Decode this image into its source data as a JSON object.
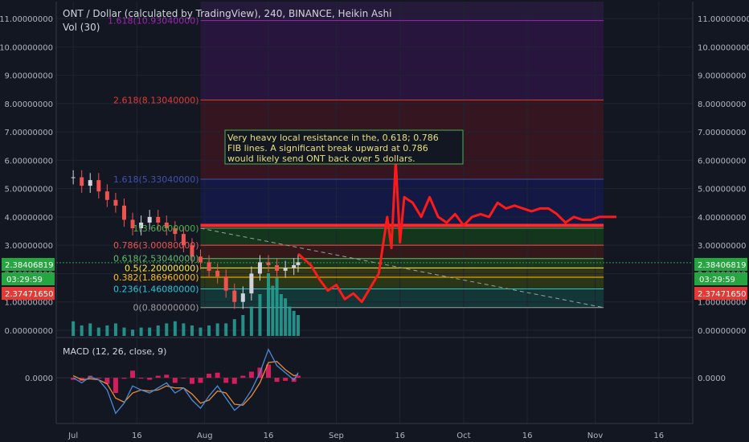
{
  "header": {
    "title": "ONT / Dollar (calculated by TradingView), 240, BINANCE, Heikin Ashi",
    "vol_label": "Vol (30)"
  },
  "macd_label": "MACD (12, 26, close, 9)",
  "colors": {
    "background": "#131722",
    "price_line": "#ff1a1a",
    "resistance": "#ff2a2a",
    "candle_up": "#d1d4dc",
    "candle_down": "#ef5350",
    "volume": "#26a69a",
    "macd_line": "#4a8ad6",
    "signal_line": "#e88a3a",
    "histogram_pos": "#e91e63",
    "price_badge": "#26a641",
    "timer_badge": "#26a641",
    "low_badge": "#e53935"
  },
  "badges": {
    "current_price": "2.38406819",
    "timer": "03:29:59",
    "price2": "2.37471650"
  },
  "annotation": {
    "lines": [
      "Very heavy local resistance in the, 0.618; 0.786",
      "FIB lines. A significant break upward at 0.786",
      "would likely send ONT back over 5 dollars."
    ]
  },
  "chart_data": [
    {
      "type": "line",
      "title": "ONT / Dollar (calculated by TradingView), 240, BINANCE, Heikin Ashi",
      "ylim": [
        -0.2,
        11.6
      ],
      "y_ticks": [
        "11.00000000",
        "10.00000000",
        "9.00000000",
        "8.00000000",
        "7.00000000",
        "6.00000000",
        "5.00000000",
        "4.00000000",
        "3.00000000",
        "2.00000000",
        "1.00000000",
        "0.00000000"
      ],
      "y_tick_values": [
        11,
        10,
        9,
        8,
        7,
        6,
        5,
        4,
        3,
        2,
        1,
        0
      ],
      "x_ticks": [
        {
          "label": "Jul",
          "day": 0
        },
        {
          "label": "16",
          "day": 15
        },
        {
          "label": "Aug",
          "day": 31
        },
        {
          "label": "16",
          "day": 46
        },
        {
          "label": "Sep",
          "day": 62
        },
        {
          "label": "16",
          "day": 77
        },
        {
          "label": "Oct",
          "day": 92
        },
        {
          "label": "16",
          "day": 107
        },
        {
          "label": "Nov",
          "day": 123
        },
        {
          "label": "16",
          "day": 138
        }
      ],
      "x_range_days": [
        -4,
        146
      ],
      "candles": {
        "x_days": [
          0,
          2,
          4,
          6,
          8,
          10,
          12,
          14,
          16,
          18,
          20,
          22,
          24,
          26,
          28,
          30,
          32,
          34,
          36,
          38,
          40,
          42,
          44,
          46,
          48,
          50,
          52,
          53
        ],
        "values": [
          5.4,
          5.1,
          5.3,
          4.9,
          4.6,
          4.4,
          3.9,
          3.6,
          3.8,
          4.0,
          3.8,
          3.6,
          3.4,
          3.0,
          2.6,
          2.4,
          2.1,
          1.9,
          1.4,
          1.0,
          1.3,
          2.0,
          2.4,
          2.3,
          2.1,
          2.2,
          2.3,
          2.4
        ]
      },
      "projection_line": {
        "x_days": [
          53,
          56,
          58,
          60,
          62,
          64,
          66,
          68,
          70,
          72,
          74,
          75,
          76,
          77,
          78,
          80,
          82,
          84,
          86,
          88,
          90,
          92,
          94,
          96,
          98,
          100,
          102,
          104,
          106,
          108,
          110,
          112,
          114,
          116,
          118,
          120,
          122,
          124,
          126,
          128
        ],
        "values": [
          2.7,
          2.3,
          1.8,
          1.4,
          1.6,
          1.1,
          1.3,
          1.0,
          1.5,
          2.0,
          4.0,
          2.9,
          6.0,
          3.1,
          4.7,
          4.5,
          4.0,
          4.7,
          4.0,
          3.8,
          4.1,
          3.7,
          4.0,
          4.1,
          4.0,
          4.5,
          4.3,
          4.4,
          4.3,
          4.2,
          4.3,
          4.3,
          4.1,
          3.8,
          4.0,
          3.9,
          3.9,
          4.0,
          4.0,
          4.0
        ]
      },
      "resistance_level": 3.7,
      "fib_region_x_days": [
        30,
        125
      ],
      "fib_levels": [
        {
          "label": "1.618(10.93040000)",
          "ratio": 1.618,
          "value": 10.9304,
          "color": "#9c27b0",
          "fill": "#2a1540"
        },
        {
          "label": "2.618(8.13040000)",
          "ratio": 2.618,
          "value": 8.1304,
          "color": "#e53935",
          "fill": "#3a1520"
        },
        {
          "label": "1.618(5.33040000)",
          "ratio": 1.618,
          "value": 5.3304,
          "color": "#3f51b5",
          "fill": "#141a48"
        },
        {
          "label": "1(3.60000000)",
          "ratio": 1,
          "value": 3.6,
          "color": "#4caf50",
          "fill": "#143a1c"
        },
        {
          "label": "0.786(3.00080000)",
          "ratio": 0.786,
          "value": 3.0008,
          "color": "#ef5350",
          "fill": "#3a1a1a"
        },
        {
          "label": "0.618(2.53040000)",
          "ratio": 0.618,
          "value": 2.5304,
          "color": "#66bb6a",
          "fill": "#1c3a1c"
        },
        {
          "label": "0.5(2.20000000)",
          "ratio": 0.5,
          "value": 2.2,
          "color": "#ffeb3b",
          "fill": "#3a3a14"
        },
        {
          "label": "0.382(1.86960000)",
          "ratio": 0.382,
          "value": 1.8696,
          "color": "#ffc107",
          "fill": "#2e3a14"
        },
        {
          "label": "0.236(1.46080000)",
          "ratio": 0.236,
          "value": 1.4608,
          "color": "#26c6da",
          "fill": "#143a3a"
        },
        {
          "label": "0(0.80000000)",
          "ratio": 0,
          "value": 0.8,
          "color": "#9e9e9e",
          "fill": "#131722"
        }
      ],
      "trendline": {
        "start": [
          30,
          3.6
        ],
        "end": [
          125,
          0.8
        ]
      },
      "volume": {
        "x_days": [
          0,
          2,
          4,
          6,
          8,
          10,
          12,
          14,
          16,
          18,
          20,
          22,
          24,
          26,
          28,
          30,
          32,
          34,
          36,
          38,
          40,
          42,
          44,
          46,
          47,
          48,
          49,
          50,
          51,
          52,
          53
        ],
        "values": [
          0.35,
          0.25,
          0.3,
          0.2,
          0.25,
          0.3,
          0.2,
          0.15,
          0.2,
          0.2,
          0.25,
          0.3,
          0.35,
          0.3,
          0.25,
          0.2,
          0.25,
          0.3,
          0.3,
          0.4,
          0.5,
          0.7,
          1.0,
          1.5,
          1.2,
          1.4,
          1.0,
          0.9,
          0.7,
          0.6,
          0.5
        ]
      }
    },
    {
      "type": "line",
      "title": "MACD (12, 26, close, 9)",
      "y_ticks": [
        "0.0000"
      ],
      "y_tick_values": [
        0
      ],
      "ylim": [
        -0.45,
        0.38
      ],
      "macd": {
        "x_days": [
          0,
          2,
          4,
          6,
          8,
          10,
          12,
          14,
          16,
          18,
          20,
          22,
          24,
          26,
          28,
          30,
          32,
          34,
          36,
          38,
          40,
          42,
          44,
          46,
          48,
          50,
          52,
          53
        ],
        "values": [
          0.0,
          -0.05,
          0.01,
          -0.02,
          -0.12,
          -0.35,
          -0.25,
          -0.08,
          -0.12,
          -0.15,
          -0.1,
          -0.05,
          -0.15,
          -0.1,
          -0.22,
          -0.3,
          -0.18,
          -0.08,
          -0.2,
          -0.32,
          -0.25,
          -0.12,
          0.05,
          0.28,
          0.12,
          0.05,
          -0.02,
          0.05
        ]
      },
      "signal": {
        "x_days": [
          0,
          2,
          4,
          6,
          8,
          10,
          12,
          14,
          16,
          18,
          20,
          22,
          24,
          26,
          28,
          30,
          32,
          34,
          36,
          38,
          40,
          42,
          44,
          46,
          48,
          50,
          52,
          53
        ],
        "values": [
          0.02,
          -0.02,
          -0.01,
          -0.02,
          -0.06,
          -0.2,
          -0.24,
          -0.15,
          -0.12,
          -0.13,
          -0.12,
          -0.08,
          -0.1,
          -0.1,
          -0.16,
          -0.25,
          -0.22,
          -0.13,
          -0.15,
          -0.26,
          -0.27,
          -0.18,
          -0.05,
          0.15,
          0.16,
          0.08,
          0.02,
          0.03
        ]
      }
    }
  ]
}
